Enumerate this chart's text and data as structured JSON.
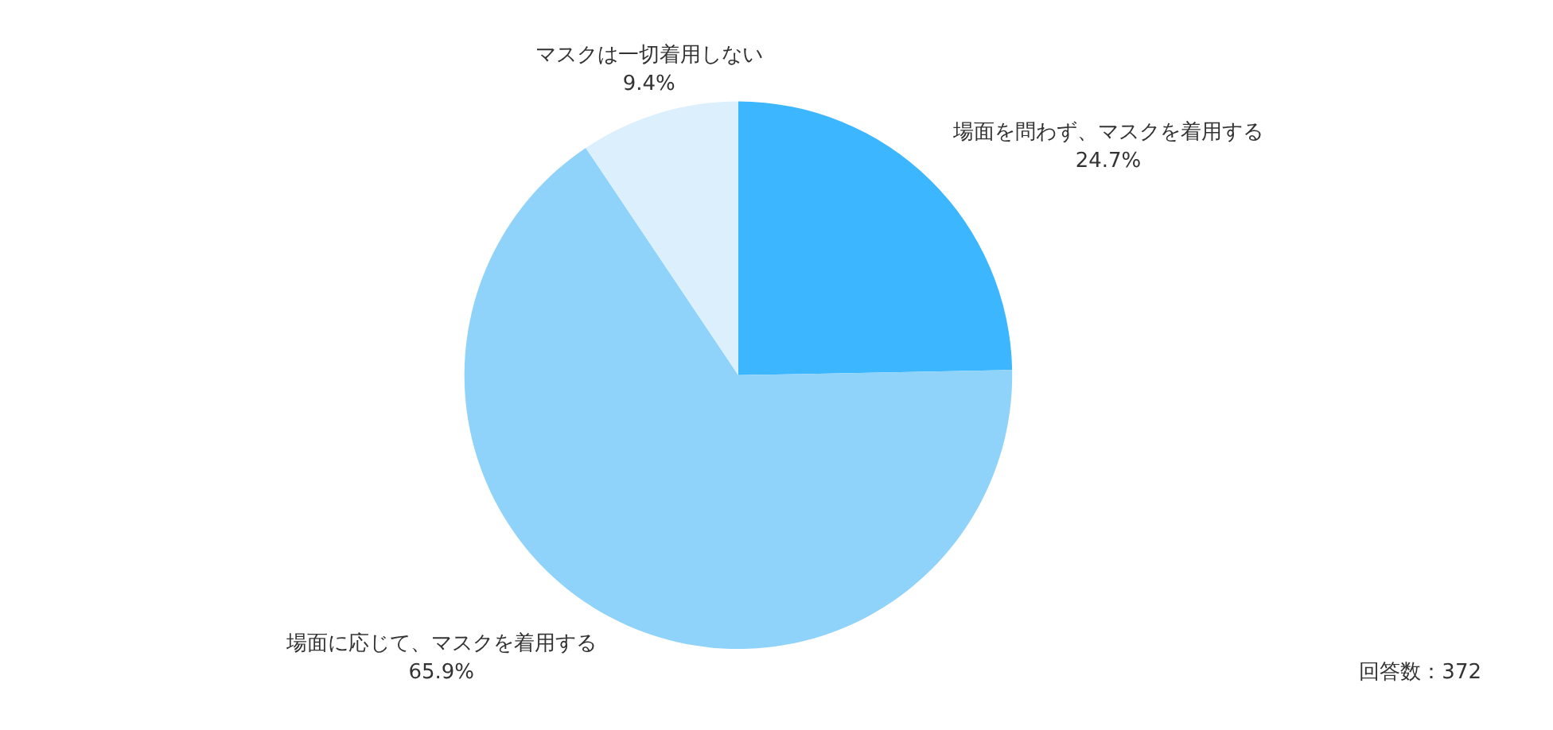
{
  "chart_data": {
    "type": "pie",
    "categories": [
      "場面を問わず、マスクを着用する",
      "場面に応じて、マスクを着用する",
      "マスクは一切着用しない"
    ],
    "values": [
      24.7,
      65.9,
      9.4
    ],
    "value_labels": [
      "24.7%",
      "65.9%",
      "9.4%"
    ],
    "colors": [
      "#3bb6ff",
      "#8fd3fb",
      "#dbeffc"
    ],
    "annotations": [
      "回答数：372"
    ]
  }
}
